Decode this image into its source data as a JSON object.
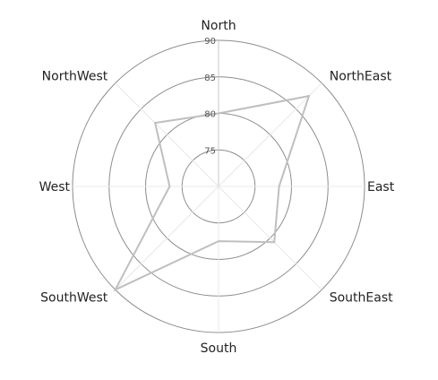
{
  "chart_data": {
    "type": "radar",
    "categories": [
      "North",
      "NorthEast",
      "East",
      "SouthEast",
      "South",
      "SouthWest",
      "West",
      "NorthWest"
    ],
    "series": [
      {
        "values": [
          80,
          87.5,
          78.3,
          80.8,
          77.5,
          90,
          76.7,
          82.3
        ]
      }
    ],
    "ticks": [
      75,
      80,
      85,
      90
    ],
    "range": [
      70,
      90
    ],
    "colors": {
      "series": "#bfbfbf",
      "rings": "#8c8c8c",
      "spokes": "#e8e8e8",
      "north_axis": "#c8c8c8"
    }
  }
}
